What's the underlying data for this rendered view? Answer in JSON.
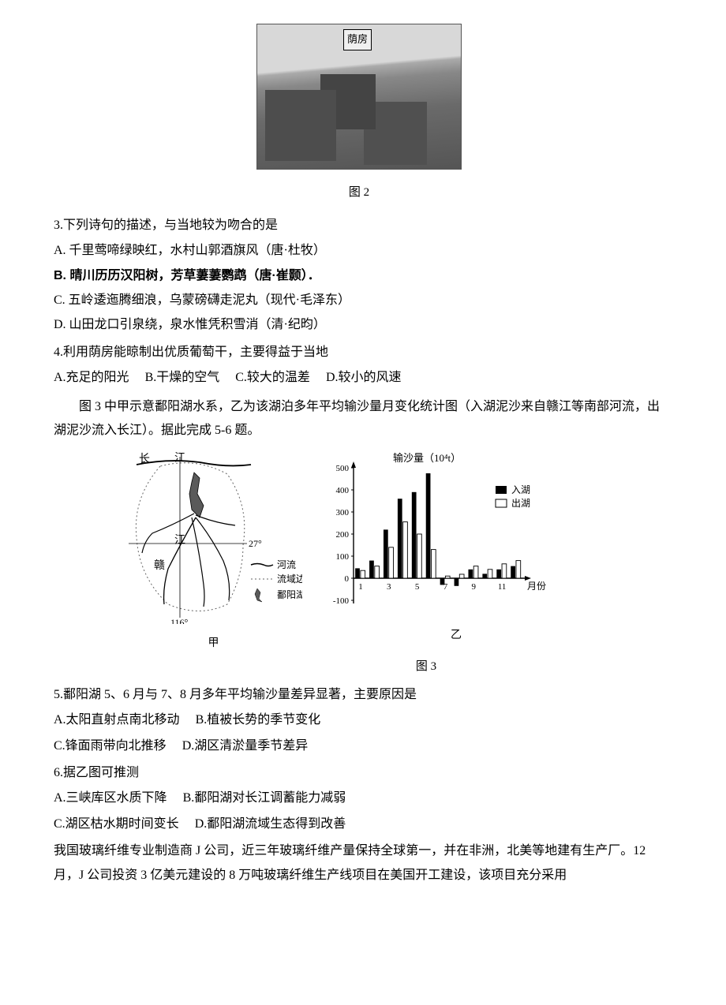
{
  "fig2": {
    "annotation": "荫房",
    "caption": "图 2"
  },
  "q3": {
    "stem": "3.下列诗句的描述，与当地较为吻合的是",
    "A": "A.  千里莺啼绿映红，水村山郭酒旗风（唐·杜牧）",
    "B": "B.  晴川历历汉阳树，芳草萋萋鹦鹉（唐·崔颢）．",
    "C": "C.  五岭逶迤腾细浪，乌蒙磅礴走泥丸（现代·毛泽东）",
    "D": "D.  山田龙口引泉绕，泉水惟凭积雪消（清·纪昀）"
  },
  "q4": {
    "stem": "4.利用荫房能晾制出优质葡萄干，主要得益于当地",
    "A": "A.充足的阳光",
    "B": "B.干燥的空气",
    "C": "C.较大的温差",
    "D": "D.较小的风速"
  },
  "intro56": "图 3 中甲示意鄱阳湖水系，乙为该湖泊多年平均输沙量月变化统计图（入湖泥沙来自赣江等南部河流，出湖泥沙流入长江）。据此完成 5-6 题。",
  "fig3": {
    "caption": "图 3",
    "map": {
      "sub_label": "甲",
      "labels": {
        "chang": "长",
        "jiang": "江",
        "jiang2": "江",
        "gan": "赣",
        "lat": "27°",
        "lon": "116°"
      },
      "legend": {
        "river": "河流",
        "boundary": "流域边界",
        "lake": "鄱阳湖"
      },
      "colors": {
        "line": "#000000",
        "lake_fill": "#5a5a5a",
        "dash": "#666666"
      }
    },
    "chart": {
      "sub_label": "乙",
      "ylabel": "输沙量（10⁴t）",
      "xlabel": "月份",
      "legend": {
        "in": "入湖",
        "out": "出湖"
      },
      "yticks": [
        -100,
        0,
        100,
        200,
        300,
        400,
        500
      ],
      "xticks": [
        1,
        3,
        5,
        7,
        9,
        11
      ],
      "in_values": [
        45,
        80,
        220,
        360,
        390,
        475,
        -30,
        -35,
        40,
        20,
        40,
        55
      ],
      "out_values": [
        35,
        55,
        140,
        255,
        200,
        130,
        10,
        18,
        55,
        40,
        65,
        80
      ],
      "colors": {
        "in_fill": "#000000",
        "out_fill": "#ffffff",
        "axis": "#000000",
        "bg": "#ffffff",
        "stroke": "#000000"
      },
      "font_size_axis": 11,
      "font_size_label": 13
    }
  },
  "q5": {
    "stem": "5.鄱阳湖 5、6 月与 7、8 月多年平均输沙量差异显著，主要原因是",
    "A": "A.太阳直射点南北移动",
    "B": "B.植被长势的季节变化",
    "C": "C.锋面雨带向北推移",
    "D": "D.湖区清淤量季节差异"
  },
  "q6": {
    "stem": "6.据乙图可推测",
    "A": "A.三峡库区水质下降",
    "B": "B.鄱阳湖对长江调蓄能力减弱",
    "C": "C.湖区枯水期时间变长",
    "D": "D.鄱阳湖流域生态得到改善"
  },
  "tail": "我国玻璃纤维专业制造商 J 公司，近三年玻璃纤维产量保持全球第一，并在非洲，北美等地建有生产厂。12 月，J 公司投资 3 亿美元建设的 8 万吨玻璃纤维生产线项目在美国开工建设，该项目充分采用"
}
